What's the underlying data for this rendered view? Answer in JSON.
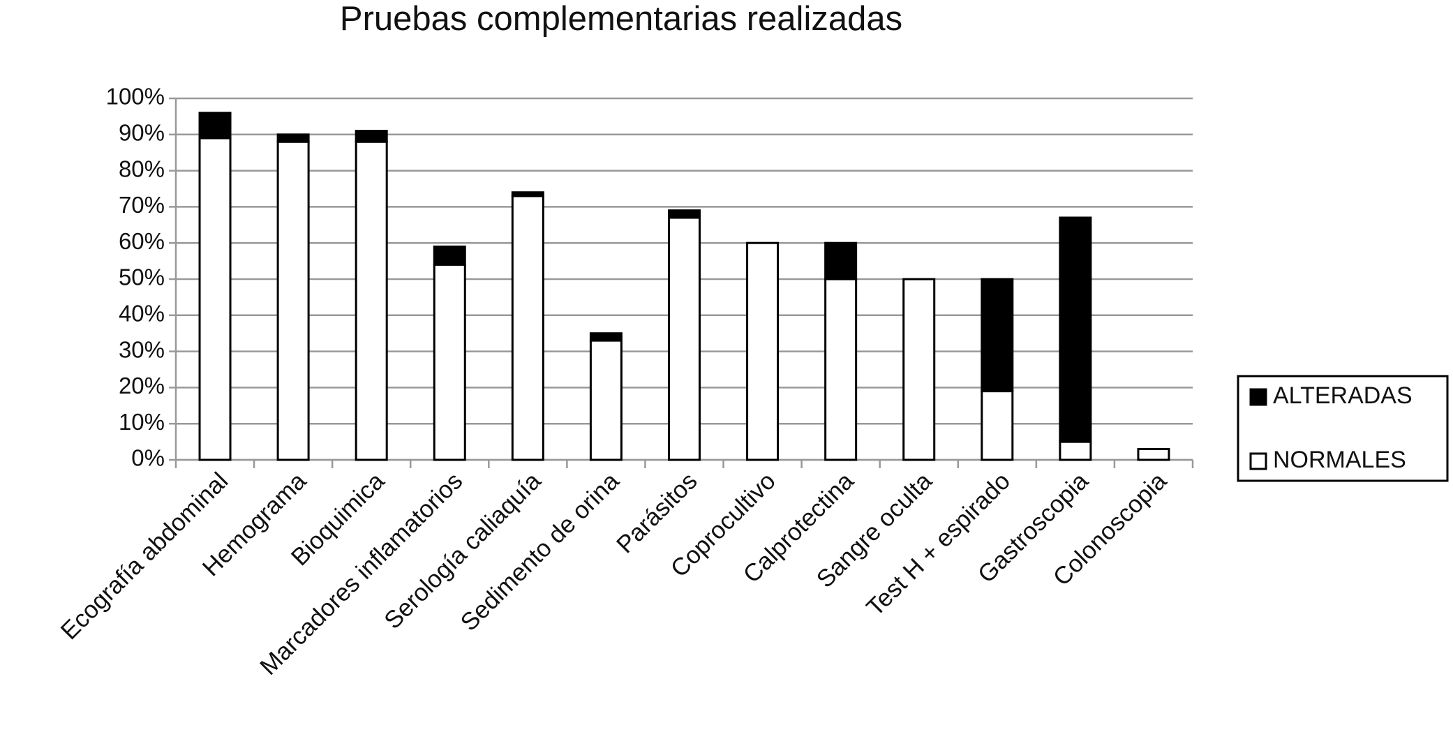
{
  "chart_data": {
    "type": "stacked_bar",
    "title": "Pruebas complementarias realizadas",
    "categories": [
      "Ecografía abdominal",
      "Hemograma",
      "Bioquimica",
      "Marcadores inflamatorios",
      "Serología caliaquía",
      "Sedimento de orina",
      "Parásitos",
      "Coprocultivo",
      "Calprotectina",
      "Sangre oculta",
      "Test H + espirado",
      "Gastroscopia",
      "Colonoscopia"
    ],
    "series": [
      {
        "name": "NORMALES",
        "color": "#ffffff",
        "values": [
          89,
          88,
          88,
          54,
          73,
          33,
          67,
          60,
          50,
          50,
          19,
          5,
          3
        ]
      },
      {
        "name": "ALTERADAS",
        "color": "#000000",
        "values": [
          7,
          2,
          3,
          5,
          1,
          2,
          2,
          0,
          10,
          0,
          31,
          62,
          0
        ]
      }
    ],
    "ylim": [
      0,
      100
    ],
    "yticks": [
      {
        "value": 0,
        "label": "0%"
      },
      {
        "value": 10,
        "label": "10%"
      },
      {
        "value": 20,
        "label": "20%"
      },
      {
        "value": 30,
        "label": "30%"
      },
      {
        "value": 40,
        "label": "40%"
      },
      {
        "value": 50,
        "label": "50%"
      },
      {
        "value": 60,
        "label": "60%"
      },
      {
        "value": 70,
        "label": "70%"
      },
      {
        "value": 80,
        "label": "80%"
      },
      {
        "value": 90,
        "label": "90%"
      },
      {
        "value": 100,
        "label": "100%"
      }
    ],
    "grid": true,
    "legend": "right"
  }
}
